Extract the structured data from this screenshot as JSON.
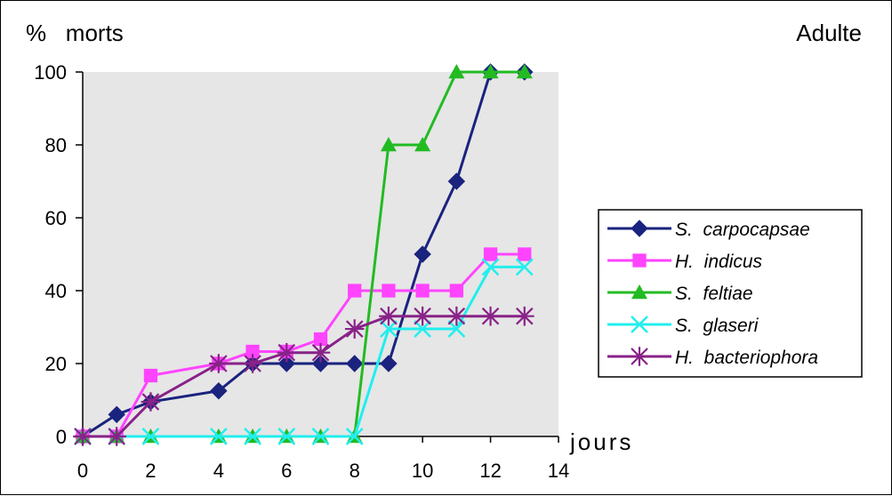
{
  "chart_data": {
    "type": "line",
    "title": "Adulte",
    "ylabel": "%   morts",
    "xlabel": "jours",
    "xlim": [
      0,
      14
    ],
    "ylim": [
      0,
      100
    ],
    "xticks": [
      0,
      2,
      4,
      6,
      8,
      10,
      12,
      14
    ],
    "yticks": [
      0,
      20,
      40,
      60,
      80,
      100
    ],
    "plot_background": "#e6e6e6",
    "legend_position": "right",
    "series": [
      {
        "name": "S.  carpocapsae",
        "color": "#1a237e",
        "marker": "diamond",
        "x": [
          0,
          1,
          2,
          4,
          5,
          6,
          7,
          8,
          9,
          10,
          11,
          12,
          13
        ],
        "y": [
          0,
          6,
          9.5,
          12.5,
          20,
          20,
          20,
          20,
          20,
          50,
          70,
          100,
          100
        ]
      },
      {
        "name": "H.  indicus",
        "color": "#ff44ff",
        "marker": "square",
        "x": [
          0,
          1,
          2,
          4,
          5,
          6,
          7,
          8,
          9,
          10,
          11,
          12,
          13
        ],
        "y": [
          0,
          0,
          16.7,
          20,
          23.3,
          23.3,
          26.7,
          40,
          40,
          40,
          40,
          50,
          50
        ]
      },
      {
        "name": "S.  feltiae",
        "color": "#22bb22",
        "marker": "triangle",
        "x": [
          0,
          1,
          2,
          4,
          5,
          6,
          7,
          8,
          9,
          10,
          11,
          12,
          13
        ],
        "y": [
          0,
          0,
          0,
          0,
          0,
          0,
          0,
          0,
          80,
          80,
          100,
          100,
          100
        ]
      },
      {
        "name": "S.  glaseri",
        "color": "#22eeee",
        "marker": "x",
        "x": [
          0,
          1,
          2,
          4,
          5,
          6,
          7,
          8,
          9,
          10,
          11,
          12,
          13
        ],
        "y": [
          0,
          0,
          0,
          0,
          0,
          0,
          0,
          0,
          29.5,
          29.5,
          29.5,
          46.5,
          46.5
        ]
      },
      {
        "name": "H.  bacteriophora",
        "color": "#882288",
        "marker": "star",
        "x": [
          0,
          1,
          2,
          4,
          5,
          6,
          7,
          8,
          9,
          10,
          11,
          12,
          13
        ],
        "y": [
          0,
          0,
          9.5,
          20,
          20,
          23,
          23,
          29.5,
          33,
          33,
          33,
          33,
          33
        ]
      }
    ]
  }
}
